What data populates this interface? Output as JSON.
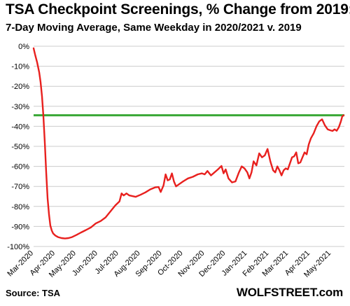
{
  "title": "TSA Checkpoint Screenings, % Change from 2019:",
  "subtitle": "7-Day Moving Average, Same Weekday in 2020/2021 v. 2019",
  "source": "Source: TSA",
  "brand": "WOLFSTREET.com",
  "colors": {
    "line": "#e8201e",
    "reference": "#3aa836",
    "grid": "#cccccc"
  },
  "chart_data": {
    "type": "line",
    "grid": "horizontal",
    "ylim": [
      -100,
      0
    ],
    "yticks": [
      0,
      -10,
      -20,
      -30,
      -40,
      -50,
      -60,
      -70,
      -80,
      -90,
      -100
    ],
    "ytick_labels": [
      "0%",
      "-10%",
      "-20%",
      "-30%",
      "-40%",
      "-50%",
      "-60%",
      "-70%",
      "-80%",
      "-90%",
      "-100%"
    ],
    "xlim": [
      "2020-03-01",
      "2021-05-20"
    ],
    "xticks": [
      "2020-03-01",
      "2020-04-01",
      "2020-05-01",
      "2020-06-01",
      "2020-07-01",
      "2020-08-01",
      "2020-09-01",
      "2020-10-01",
      "2020-11-01",
      "2020-12-01",
      "2021-01-01",
      "2021-02-01",
      "2021-03-01",
      "2021-04-01",
      "2021-05-01"
    ],
    "xtick_labels": [
      "Mar-2020",
      "Apr-2020",
      "May-2020",
      "Jun-2020",
      "Jul-2020",
      "Aug-2020",
      "Sep-2020",
      "Oct-2020",
      "Nov-2020",
      "Dec-2020",
      "Jan-2021",
      "Feb-2021",
      "Mar-2021",
      "Apr-2021",
      "May-2021"
    ],
    "reference_line": {
      "y": -34.5
    },
    "series": [
      {
        "x": [
          "2020-03-01",
          "2020-03-03",
          "2020-03-06",
          "2020-03-09",
          "2020-03-11",
          "2020-03-13",
          "2020-03-15",
          "2020-03-17",
          "2020-03-19",
          "2020-03-21",
          "2020-03-23",
          "2020-03-25",
          "2020-03-27",
          "2020-03-29",
          "2020-04-01",
          "2020-04-05",
          "2020-04-10",
          "2020-04-15",
          "2020-04-20",
          "2020-04-25",
          "2020-05-01",
          "2020-05-08",
          "2020-05-15",
          "2020-05-22",
          "2020-05-29",
          "2020-06-05",
          "2020-06-12",
          "2020-06-19",
          "2020-06-26",
          "2020-07-02",
          "2020-07-05",
          "2020-07-08",
          "2020-07-12",
          "2020-07-16",
          "2020-07-20",
          "2020-07-25",
          "2020-08-01",
          "2020-08-08",
          "2020-08-15",
          "2020-08-22",
          "2020-08-27",
          "2020-08-30",
          "2020-09-03",
          "2020-09-06",
          "2020-09-09",
          "2020-09-12",
          "2020-09-15",
          "2020-09-18",
          "2020-09-21",
          "2020-09-25",
          "2020-10-01",
          "2020-10-08",
          "2020-10-15",
          "2020-10-22",
          "2020-10-28",
          "2020-11-01",
          "2020-11-05",
          "2020-11-10",
          "2020-11-15",
          "2020-11-20",
          "2020-11-25",
          "2020-11-28",
          "2020-12-01",
          "2020-12-05",
          "2020-12-10",
          "2020-12-15",
          "2020-12-20",
          "2020-12-24",
          "2020-12-28",
          "2021-01-01",
          "2021-01-04",
          "2021-01-07",
          "2021-01-10",
          "2021-01-14",
          "2021-01-18",
          "2021-01-22",
          "2021-01-26",
          "2021-01-30",
          "2021-02-03",
          "2021-02-07",
          "2021-02-10",
          "2021-02-13",
          "2021-02-16",
          "2021-02-19",
          "2021-02-22",
          "2021-02-25",
          "2021-02-28",
          "2021-03-03",
          "2021-03-06",
          "2021-03-09",
          "2021-03-12",
          "2021-03-15",
          "2021-03-18",
          "2021-03-21",
          "2021-03-24",
          "2021-03-27",
          "2021-03-30",
          "2021-04-02",
          "2021-04-06",
          "2021-04-10",
          "2021-04-14",
          "2021-04-18",
          "2021-04-22",
          "2021-04-26",
          "2021-04-30",
          "2021-05-03",
          "2021-05-06",
          "2021-05-09",
          "2021-05-12",
          "2021-05-15",
          "2021-05-17",
          "2021-05-19"
        ],
        "values": [
          -1,
          -4,
          -8,
          -13,
          -18,
          -25,
          -35,
          -48,
          -63,
          -76,
          -84,
          -89.5,
          -92,
          -93.5,
          -94.5,
          -95.3,
          -95.8,
          -96,
          -95.8,
          -95.3,
          -94.3,
          -93,
          -91.8,
          -90.5,
          -88.5,
          -87.3,
          -85.5,
          -82.5,
          -79.5,
          -77.5,
          -73.5,
          -74.5,
          -73.5,
          -74.5,
          -74.8,
          -75.2,
          -74.2,
          -73,
          -71.5,
          -70.5,
          -70.3,
          -72.8,
          -69.5,
          -64,
          -67,
          -66.5,
          -63.5,
          -67.5,
          -70,
          -69,
          -67.5,
          -66,
          -65.2,
          -64,
          -63.5,
          -64,
          -62.3,
          -64.5,
          -63,
          -61.5,
          -59.8,
          -63.5,
          -61.5,
          -66,
          -68,
          -67.5,
          -63,
          -60,
          -61,
          -63,
          -66,
          -63,
          -57.5,
          -59.5,
          -53.5,
          -55.5,
          -54.5,
          -51.3,
          -57.5,
          -62,
          -63,
          -60,
          -62,
          -64.5,
          -62,
          -61,
          -61.5,
          -58.5,
          -55.5,
          -55,
          -53,
          -58.5,
          -58,
          -55.5,
          -53,
          -54,
          -49,
          -46,
          -43.5,
          -40,
          -37.5,
          -36.5,
          -39.5,
          -41.5,
          -42,
          -42.3,
          -41.5,
          -42.2,
          -40.5,
          -37.5,
          -35,
          -34.5
        ]
      }
    ]
  }
}
